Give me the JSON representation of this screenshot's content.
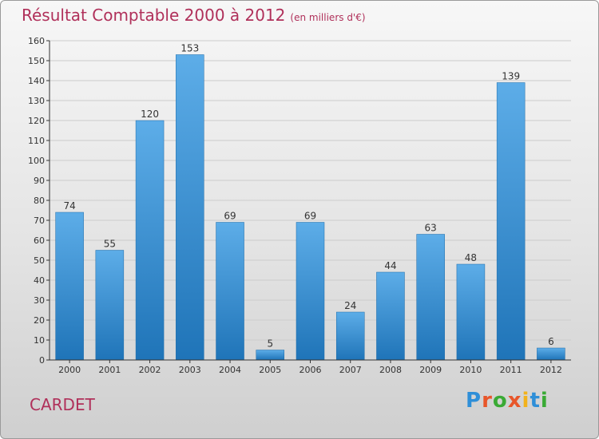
{
  "header": {
    "title": "Résultat Comptable 2000 à 2012",
    "unit": "(en milliers d'€)"
  },
  "footer": {
    "city": "CARDET",
    "logo_text": "Proxiti",
    "logo_colors": [
      "#2f8fd8",
      "#e8562a",
      "#3aaa35",
      "#e8562a",
      "#f2b21b",
      "#2f8fd8",
      "#3aaa35"
    ]
  },
  "colors": {
    "title": "#b0305a",
    "bar_top": "#5dade8",
    "bar_bottom": "#1f74b8",
    "grid": "#cccccc",
    "axis": "#333333"
  },
  "chart_data": {
    "type": "bar",
    "title": "Résultat Comptable 2000 à 2012",
    "xlabel": "",
    "ylabel": "",
    "ylim": [
      0,
      160
    ],
    "yticks": [
      0,
      10,
      20,
      30,
      40,
      50,
      60,
      70,
      80,
      90,
      100,
      110,
      120,
      130,
      140,
      150,
      160
    ],
    "grid": true,
    "categories": [
      "2000",
      "2001",
      "2002",
      "2003",
      "2004",
      "2005",
      "2006",
      "2007",
      "2008",
      "2009",
      "2010",
      "2011",
      "2012"
    ],
    "values": [
      74,
      55,
      120,
      153,
      69,
      5,
      69,
      24,
      44,
      63,
      48,
      139,
      6
    ]
  }
}
